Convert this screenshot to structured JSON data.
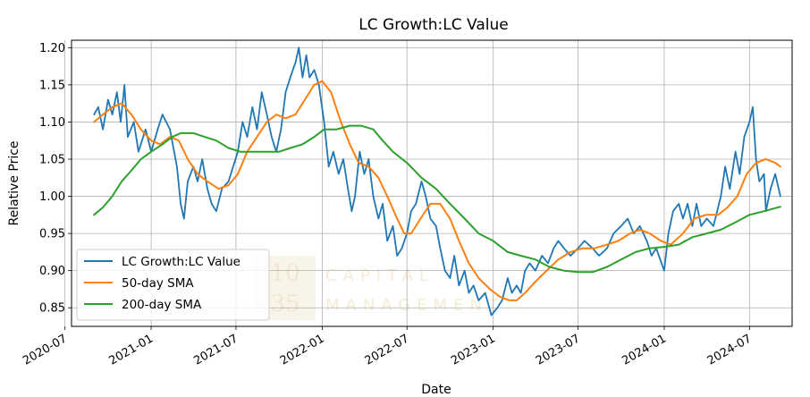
{
  "chart_data": {
    "type": "line",
    "title": "LC Growth:LC Value",
    "xlabel": "Date",
    "ylabel": "Relative Price",
    "xlim": [
      "2020-07-15",
      "2024-09-30"
    ],
    "ylim": [
      0.825,
      1.21
    ],
    "x_ticks": [
      "2020-07",
      "2021-01",
      "2021-07",
      "2022-01",
      "2022-07",
      "2023-01",
      "2023-07",
      "2024-01",
      "2024-07"
    ],
    "y_ticks": [
      "0.85",
      "0.90",
      "0.95",
      "1.00",
      "1.05",
      "1.10",
      "1.15",
      "1.20"
    ],
    "grid": true,
    "legend_position": "lower-left",
    "watermark": {
      "number_line1": "10",
      "number_line2": "35",
      "text_line1": "CAPITAL",
      "text_line2": "MANAGEMENT"
    },
    "series": [
      {
        "name": "LC Growth:LC Value",
        "color": "#1f77b4",
        "points": [
          [
            "2020-09-01",
            1.11
          ],
          [
            "2020-09-10",
            1.12
          ],
          [
            "2020-09-20",
            1.09
          ],
          [
            "2020-10-01",
            1.13
          ],
          [
            "2020-10-10",
            1.11
          ],
          [
            "2020-10-20",
            1.14
          ],
          [
            "2020-10-28",
            1.1
          ],
          [
            "2020-11-05",
            1.15
          ],
          [
            "2020-11-12",
            1.08
          ],
          [
            "2020-11-25",
            1.1
          ],
          [
            "2020-12-05",
            1.06
          ],
          [
            "2020-12-20",
            1.09
          ],
          [
            "2021-01-01",
            1.06
          ],
          [
            "2021-01-15",
            1.09
          ],
          [
            "2021-01-25",
            1.11
          ],
          [
            "2021-02-10",
            1.09
          ],
          [
            "2021-02-25",
            1.04
          ],
          [
            "2021-03-05",
            0.99
          ],
          [
            "2021-03-12",
            0.97
          ],
          [
            "2021-03-20",
            1.02
          ],
          [
            "2021-04-01",
            1.04
          ],
          [
            "2021-04-10",
            1.02
          ],
          [
            "2021-04-20",
            1.05
          ],
          [
            "2021-05-01",
            1.01
          ],
          [
            "2021-05-10",
            0.99
          ],
          [
            "2021-05-20",
            0.98
          ],
          [
            "2021-06-01",
            1.01
          ],
          [
            "2021-06-15",
            1.02
          ],
          [
            "2021-06-25",
            1.04
          ],
          [
            "2021-07-05",
            1.06
          ],
          [
            "2021-07-15",
            1.1
          ],
          [
            "2021-07-25",
            1.08
          ],
          [
            "2021-08-05",
            1.12
          ],
          [
            "2021-08-15",
            1.09
          ],
          [
            "2021-08-25",
            1.14
          ],
          [
            "2021-09-05",
            1.11
          ],
          [
            "2021-09-15",
            1.08
          ],
          [
            "2021-09-25",
            1.06
          ],
          [
            "2021-10-05",
            1.09
          ],
          [
            "2021-10-15",
            1.14
          ],
          [
            "2021-10-25",
            1.16
          ],
          [
            "2021-11-05",
            1.18
          ],
          [
            "2021-11-12",
            1.2
          ],
          [
            "2021-11-20",
            1.16
          ],
          [
            "2021-11-28",
            1.19
          ],
          [
            "2021-12-05",
            1.16
          ],
          [
            "2021-12-15",
            1.17
          ],
          [
            "2021-12-25",
            1.15
          ],
          [
            "2022-01-05",
            1.1
          ],
          [
            "2022-01-15",
            1.04
          ],
          [
            "2022-01-25",
            1.06
          ],
          [
            "2022-02-05",
            1.03
          ],
          [
            "2022-02-15",
            1.05
          ],
          [
            "2022-02-25",
            1.01
          ],
          [
            "2022-03-05",
            0.98
          ],
          [
            "2022-03-12",
            1.0
          ],
          [
            "2022-03-22",
            1.06
          ],
          [
            "2022-04-01",
            1.03
          ],
          [
            "2022-04-10",
            1.05
          ],
          [
            "2022-04-20",
            1.0
          ],
          [
            "2022-05-01",
            0.97
          ],
          [
            "2022-05-10",
            0.99
          ],
          [
            "2022-05-20",
            0.94
          ],
          [
            "2022-06-01",
            0.96
          ],
          [
            "2022-06-10",
            0.92
          ],
          [
            "2022-06-20",
            0.93
          ],
          [
            "2022-07-01",
            0.95
          ],
          [
            "2022-07-10",
            0.98
          ],
          [
            "2022-07-20",
            0.99
          ],
          [
            "2022-08-01",
            1.02
          ],
          [
            "2022-08-10",
            1.0
          ],
          [
            "2022-08-20",
            0.97
          ],
          [
            "2022-09-01",
            0.96
          ],
          [
            "2022-09-10",
            0.93
          ],
          [
            "2022-09-20",
            0.9
          ],
          [
            "2022-10-01",
            0.89
          ],
          [
            "2022-10-10",
            0.92
          ],
          [
            "2022-10-20",
            0.88
          ],
          [
            "2022-11-01",
            0.9
          ],
          [
            "2022-11-10",
            0.87
          ],
          [
            "2022-11-20",
            0.88
          ],
          [
            "2022-12-01",
            0.86
          ],
          [
            "2022-12-15",
            0.87
          ],
          [
            "2022-12-28",
            0.84
          ],
          [
            "2023-01-10",
            0.85
          ],
          [
            "2023-01-20",
            0.86
          ],
          [
            "2023-02-01",
            0.89
          ],
          [
            "2023-02-10",
            0.87
          ],
          [
            "2023-02-20",
            0.88
          ],
          [
            "2023-03-01",
            0.87
          ],
          [
            "2023-03-10",
            0.9
          ],
          [
            "2023-03-20",
            0.91
          ],
          [
            "2023-04-01",
            0.9
          ],
          [
            "2023-04-15",
            0.92
          ],
          [
            "2023-04-28",
            0.91
          ],
          [
            "2023-05-10",
            0.93
          ],
          [
            "2023-05-20",
            0.94
          ],
          [
            "2023-06-01",
            0.93
          ],
          [
            "2023-06-15",
            0.92
          ],
          [
            "2023-07-01",
            0.93
          ],
          [
            "2023-07-15",
            0.94
          ],
          [
            "2023-08-01",
            0.93
          ],
          [
            "2023-08-15",
            0.92
          ],
          [
            "2023-09-01",
            0.93
          ],
          [
            "2023-09-15",
            0.95
          ],
          [
            "2023-10-01",
            0.96
          ],
          [
            "2023-10-15",
            0.97
          ],
          [
            "2023-10-28",
            0.95
          ],
          [
            "2023-11-10",
            0.96
          ],
          [
            "2023-11-25",
            0.94
          ],
          [
            "2023-12-05",
            0.92
          ],
          [
            "2023-12-15",
            0.93
          ],
          [
            "2024-01-01",
            0.9
          ],
          [
            "2024-01-10",
            0.95
          ],
          [
            "2024-01-20",
            0.98
          ],
          [
            "2024-02-01",
            0.99
          ],
          [
            "2024-02-10",
            0.97
          ],
          [
            "2024-02-20",
            0.99
          ],
          [
            "2024-03-01",
            0.96
          ],
          [
            "2024-03-10",
            0.99
          ],
          [
            "2024-03-20",
            0.96
          ],
          [
            "2024-04-01",
            0.97
          ],
          [
            "2024-04-15",
            0.96
          ],
          [
            "2024-05-01",
            1.0
          ],
          [
            "2024-05-10",
            1.04
          ],
          [
            "2024-05-20",
            1.01
          ],
          [
            "2024-06-01",
            1.06
          ],
          [
            "2024-06-10",
            1.03
          ],
          [
            "2024-06-20",
            1.08
          ],
          [
            "2024-07-01",
            1.1
          ],
          [
            "2024-07-08",
            1.12
          ],
          [
            "2024-07-15",
            1.05
          ],
          [
            "2024-07-22",
            1.02
          ],
          [
            "2024-08-01",
            1.03
          ],
          [
            "2024-08-05",
            0.98
          ],
          [
            "2024-08-15",
            1.01
          ],
          [
            "2024-08-25",
            1.03
          ],
          [
            "2024-09-05",
            1.0
          ]
        ]
      },
      {
        "name": "50-day SMA",
        "color": "#ff7f0e",
        "points": [
          [
            "2020-09-01",
            1.1
          ],
          [
            "2020-09-20",
            1.11
          ],
          [
            "2020-10-10",
            1.12
          ],
          [
            "2020-10-30",
            1.125
          ],
          [
            "2020-11-20",
            1.11
          ],
          [
            "2020-12-10",
            1.09
          ],
          [
            "2021-01-01",
            1.075
          ],
          [
            "2021-01-20",
            1.07
          ],
          [
            "2021-02-10",
            1.08
          ],
          [
            "2021-03-01",
            1.075
          ],
          [
            "2021-03-20",
            1.05
          ],
          [
            "2021-04-10",
            1.03
          ],
          [
            "2021-05-01",
            1.02
          ],
          [
            "2021-05-25",
            1.01
          ],
          [
            "2021-06-15",
            1.015
          ],
          [
            "2021-07-05",
            1.03
          ],
          [
            "2021-07-25",
            1.06
          ],
          [
            "2021-08-15",
            1.08
          ],
          [
            "2021-09-05",
            1.1
          ],
          [
            "2021-09-25",
            1.11
          ],
          [
            "2021-10-15",
            1.105
          ],
          [
            "2021-11-05",
            1.11
          ],
          [
            "2021-11-25",
            1.13
          ],
          [
            "2021-12-15",
            1.15
          ],
          [
            "2022-01-01",
            1.155
          ],
          [
            "2022-01-20",
            1.14
          ],
          [
            "2022-02-10",
            1.1
          ],
          [
            "2022-03-01",
            1.07
          ],
          [
            "2022-03-20",
            1.045
          ],
          [
            "2022-04-10",
            1.04
          ],
          [
            "2022-05-01",
            1.025
          ],
          [
            "2022-05-20",
            1.0
          ],
          [
            "2022-06-10",
            0.97
          ],
          [
            "2022-06-25",
            0.95
          ],
          [
            "2022-07-10",
            0.95
          ],
          [
            "2022-07-30",
            0.97
          ],
          [
            "2022-08-20",
            0.99
          ],
          [
            "2022-09-10",
            0.99
          ],
          [
            "2022-10-01",
            0.97
          ],
          [
            "2022-10-20",
            0.94
          ],
          [
            "2022-11-10",
            0.91
          ],
          [
            "2022-12-01",
            0.89
          ],
          [
            "2022-12-25",
            0.875
          ],
          [
            "2023-01-15",
            0.865
          ],
          [
            "2023-02-05",
            0.86
          ],
          [
            "2023-02-20",
            0.86
          ],
          [
            "2023-03-10",
            0.87
          ],
          [
            "2023-04-01",
            0.885
          ],
          [
            "2023-04-25",
            0.9
          ],
          [
            "2023-05-20",
            0.915
          ],
          [
            "2023-06-15",
            0.925
          ],
          [
            "2023-07-10",
            0.93
          ],
          [
            "2023-08-05",
            0.93
          ],
          [
            "2023-09-01",
            0.935
          ],
          [
            "2023-09-25",
            0.94
          ],
          [
            "2023-10-20",
            0.95
          ],
          [
            "2023-11-10",
            0.955
          ],
          [
            "2023-12-01",
            0.95
          ],
          [
            "2023-12-25",
            0.94
          ],
          [
            "2024-01-15",
            0.935
          ],
          [
            "2024-02-10",
            0.95
          ],
          [
            "2024-03-05",
            0.97
          ],
          [
            "2024-03-30",
            0.975
          ],
          [
            "2024-04-25",
            0.975
          ],
          [
            "2024-05-15",
            0.985
          ],
          [
            "2024-06-05",
            1.0
          ],
          [
            "2024-06-25",
            1.03
          ],
          [
            "2024-07-15",
            1.045
          ],
          [
            "2024-08-05",
            1.05
          ],
          [
            "2024-08-25",
            1.045
          ],
          [
            "2024-09-05",
            1.04
          ]
        ]
      },
      {
        "name": "200-day SMA",
        "color": "#2ca02c",
        "points": [
          [
            "2020-09-01",
            0.975
          ],
          [
            "2020-09-20",
            0.985
          ],
          [
            "2020-10-10",
            1.0
          ],
          [
            "2020-10-30",
            1.02
          ],
          [
            "2020-11-20",
            1.035
          ],
          [
            "2020-12-10",
            1.05
          ],
          [
            "2021-01-01",
            1.06
          ],
          [
            "2021-01-25",
            1.07
          ],
          [
            "2021-02-15",
            1.08
          ],
          [
            "2021-03-05",
            1.085
          ],
          [
            "2021-04-01",
            1.085
          ],
          [
            "2021-04-25",
            1.08
          ],
          [
            "2021-05-20",
            1.075
          ],
          [
            "2021-06-15",
            1.065
          ],
          [
            "2021-07-10",
            1.06
          ],
          [
            "2021-08-05",
            1.06
          ],
          [
            "2021-09-01",
            1.06
          ],
          [
            "2021-10-01",
            1.06
          ],
          [
            "2021-10-25",
            1.065
          ],
          [
            "2021-11-20",
            1.07
          ],
          [
            "2021-12-15",
            1.08
          ],
          [
            "2022-01-05",
            1.09
          ],
          [
            "2022-02-01",
            1.09
          ],
          [
            "2022-03-01",
            1.095
          ],
          [
            "2022-03-25",
            1.095
          ],
          [
            "2022-04-20",
            1.09
          ],
          [
            "2022-05-10",
            1.075
          ],
          [
            "2022-06-01",
            1.06
          ],
          [
            "2022-07-01",
            1.045
          ],
          [
            "2022-08-01",
            1.025
          ],
          [
            "2022-09-01",
            1.01
          ],
          [
            "2022-10-01",
            0.99
          ],
          [
            "2022-11-01",
            0.97
          ],
          [
            "2022-12-01",
            0.95
          ],
          [
            "2023-01-01",
            0.94
          ],
          [
            "2023-02-01",
            0.925
          ],
          [
            "2023-03-01",
            0.92
          ],
          [
            "2023-04-01",
            0.915
          ],
          [
            "2023-05-01",
            0.905
          ],
          [
            "2023-06-01",
            0.9
          ],
          [
            "2023-07-01",
            0.898
          ],
          [
            "2023-08-01",
            0.898
          ],
          [
            "2023-09-01",
            0.905
          ],
          [
            "2023-10-01",
            0.915
          ],
          [
            "2023-11-01",
            0.925
          ],
          [
            "2023-12-01",
            0.93
          ],
          [
            "2024-01-01",
            0.932
          ],
          [
            "2024-02-01",
            0.935
          ],
          [
            "2024-03-01",
            0.945
          ],
          [
            "2024-04-01",
            0.95
          ],
          [
            "2024-05-01",
            0.955
          ],
          [
            "2024-06-01",
            0.965
          ],
          [
            "2024-07-01",
            0.975
          ],
          [
            "2024-08-01",
            0.98
          ],
          [
            "2024-09-05",
            0.986
          ]
        ]
      }
    ]
  }
}
